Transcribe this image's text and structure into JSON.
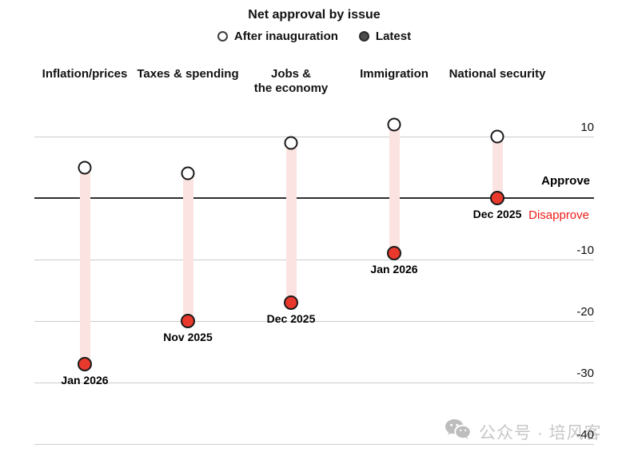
{
  "header": {
    "title": "Net approval by issue",
    "legend": [
      {
        "label": "After inauguration",
        "marker": "open-circle"
      },
      {
        "label": "Latest",
        "marker": "filled-circle"
      }
    ]
  },
  "axis": {
    "ticks": [
      10,
      -10,
      -20,
      -30,
      -40
    ],
    "zero_value": 0,
    "approve_label": "Approve",
    "disapprove_label": "Disapprove"
  },
  "watermark": {
    "icon": "wechat-icon",
    "text": "公众号 · 培风客"
  },
  "colors": {
    "latest_dot": "#e8392c",
    "after_dot_fill": "#ffffff",
    "dot_outline": "#1a1a1a",
    "range_bar": "#fae3e0",
    "disapprove_text": "#ed1c16",
    "gridline": "#cccccc",
    "zero_line": "#2e2e2e",
    "legend_filled": "#4d4d4d",
    "watermark_gray": "#c6c6c6"
  },
  "chart_data": {
    "type": "dumbbell",
    "title": "Net approval by issue",
    "categories": [
      "Inflation/prices",
      "Taxes & spending",
      "Jobs &\nthe economy",
      "Immigration",
      "National security"
    ],
    "series": [
      {
        "name": "After inauguration",
        "values": [
          5,
          4,
          9,
          12,
          10
        ]
      },
      {
        "name": "Latest",
        "values": [
          -27,
          -20,
          -17,
          -9,
          0
        ]
      }
    ],
    "latest_date_labels": [
      "Jan 2026",
      "Nov 2025",
      "Dec 2025",
      "Jan 2026",
      "Dec 2025"
    ],
    "yticks": [
      10,
      0,
      -10,
      -20,
      -30,
      -40
    ],
    "ylim": [
      -43,
      14
    ],
    "grid": "horizontal",
    "legend_position": "top",
    "annotations": [
      "Approve",
      "Disapprove"
    ]
  }
}
